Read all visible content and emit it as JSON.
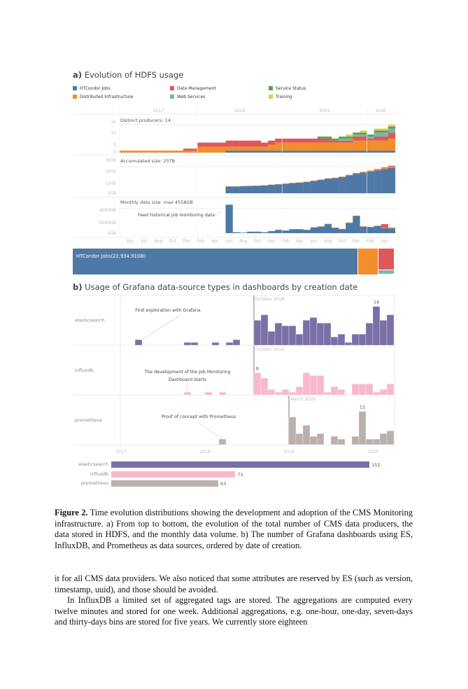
{
  "figure_a": {
    "title_prefix": "a)",
    "title": "Evolution of HDFS usage",
    "legend": [
      {
        "key": "htcondor",
        "label": "HTCondor Jobs",
        "color": "#4e79a7"
      },
      {
        "key": "distributed",
        "label": "Distributed Infrastructure",
        "color": "#f28e2b"
      },
      {
        "key": "datamgmt",
        "label": "Data Management",
        "color": "#e15759"
      },
      {
        "key": "websvc",
        "label": "Web Services",
        "color": "#76b7b2"
      },
      {
        "key": "svcstatus",
        "label": "Service Status",
        "color": "#59a14f"
      },
      {
        "key": "training",
        "label": "Training",
        "color": "#edc948"
      }
    ],
    "years": [
      "2017",
      "2018",
      "2019",
      "2020"
    ],
    "month_labels": [
      "Apr",
      "Jun",
      "Aug",
      "Oct",
      "Dec",
      "Feb",
      "Apr",
      "Jun",
      "Aug",
      "Oct",
      "Dec",
      "Feb",
      "Apr",
      "Jun",
      "Aug",
      "Oct",
      "Dec",
      "Feb",
      "Apr"
    ],
    "treemap": {
      "label": "HTCondor Jobs(22,934.91GB)"
    },
    "annotation": "Feed historical job monitoring data"
  },
  "chart_data": [
    {
      "type": "bar",
      "stacked": true,
      "title": "Distinct producers: 14",
      "x_start": "2017-02",
      "y_ticks": [
        "15",
        "10",
        "5",
        "0"
      ],
      "ylim": [
        0,
        15
      ],
      "series": [
        {
          "name": "HTCondor Jobs",
          "values": [
            0,
            0,
            0,
            0,
            0,
            0,
            0,
            0,
            0,
            0,
            0,
            0,
            0,
            0,
            0,
            1,
            1,
            1,
            1,
            1,
            1,
            1,
            1,
            1,
            1,
            1,
            1,
            1,
            1,
            1,
            1,
            1,
            1,
            1,
            1,
            1,
            1,
            1,
            1
          ]
        },
        {
          "name": "Distributed Infrastructure",
          "values": [
            1,
            1,
            1,
            1,
            1,
            1,
            1,
            1,
            1,
            1,
            1,
            3,
            3,
            3,
            3,
            2,
            2,
            2,
            2,
            2,
            2,
            3,
            4,
            4,
            4,
            4,
            4,
            4,
            4,
            4,
            4,
            4,
            4,
            5,
            5,
            5,
            5,
            5,
            6
          ]
        },
        {
          "name": "Data Management",
          "values": [
            0,
            0,
            0,
            0,
            0,
            0,
            0,
            0,
            0,
            1,
            1,
            2,
            2,
            2,
            2,
            3,
            3,
            3,
            3,
            3,
            2,
            2,
            2,
            2,
            2,
            2,
            2,
            2,
            2,
            2,
            1,
            1,
            1,
            2,
            2,
            1,
            2,
            2,
            3
          ]
        },
        {
          "name": "Web Services",
          "values": [
            0,
            0,
            0,
            0,
            0,
            0,
            0,
            0,
            0,
            0,
            0,
            0,
            0,
            0,
            0,
            0,
            0,
            0,
            0,
            0,
            0,
            0,
            0,
            0,
            0,
            0,
            0,
            0,
            0,
            0,
            0,
            1,
            1,
            1,
            1,
            1,
            2,
            2,
            2
          ]
        },
        {
          "name": "Service Status",
          "values": [
            0,
            0,
            0,
            0,
            0,
            0,
            0,
            0,
            0,
            0,
            0,
            0,
            0,
            0,
            0,
            0,
            0,
            0,
            0,
            0,
            0,
            0,
            0,
            0,
            0,
            0,
            0,
            0,
            1,
            1,
            1,
            1,
            1,
            1,
            1,
            1,
            1,
            1,
            1
          ]
        },
        {
          "name": "Training",
          "values": [
            0,
            0,
            0,
            0,
            0,
            0,
            0,
            0,
            0,
            0,
            0,
            0,
            0,
            0,
            0,
            0,
            0,
            0,
            0,
            0,
            0,
            0,
            0,
            0,
            0,
            0,
            0,
            0,
            0,
            0,
            0,
            0,
            1,
            0,
            1,
            0,
            1,
            1,
            1
          ]
        }
      ]
    },
    {
      "type": "bar",
      "stacked": true,
      "title": "Accumulated size: 25TB",
      "x_start": "2017-02",
      "y_ticks": [
        "30TB",
        "20TB",
        "10TB",
        "0TB"
      ],
      "ylim": [
        0,
        30
      ],
      "unit": "TB",
      "series": [
        {
          "name": "HTCondor Jobs",
          "values": [
            0,
            0,
            0,
            0,
            0,
            0,
            0,
            0,
            0,
            0,
            0,
            0,
            0,
            0,
            0,
            6,
            6,
            6.3,
            6.5,
            6.7,
            7,
            7.5,
            8,
            8.5,
            9,
            9.5,
            10,
            11,
            12,
            13,
            13.5,
            14.5,
            16,
            17.5,
            18.5,
            19.5,
            20.5,
            21.5,
            22.5
          ]
        },
        {
          "name": "Distributed Infrastructure",
          "values": [
            0,
            0,
            0,
            0,
            0,
            0,
            0,
            0,
            0,
            0,
            0,
            0,
            0,
            0,
            0,
            0.2,
            0.2,
            0.2,
            0.2,
            0.2,
            0.2,
            0.2,
            0.2,
            0.2,
            0.3,
            0.3,
            0.3,
            0.3,
            0.3,
            0.4,
            0.4,
            0.4,
            0.5,
            0.6,
            0.7,
            0.8,
            1,
            1.1,
            1.3
          ]
        },
        {
          "name": "Data Management",
          "values": [
            0,
            0,
            0,
            0,
            0,
            0,
            0,
            0,
            0,
            0,
            0,
            0,
            0,
            0,
            0,
            0,
            0,
            0,
            0,
            0,
            0,
            0,
            0,
            0,
            0,
            0,
            0,
            0,
            0,
            0,
            0,
            0,
            0,
            0,
            0,
            0,
            0.2,
            0.5,
            0.8
          ]
        }
      ]
    },
    {
      "type": "bar",
      "stacked": true,
      "title": "Monthly data size: max 4558GB",
      "x_start": "2017-02",
      "y_ticks": [
        "4000GB",
        "2000GB",
        "0GB"
      ],
      "ylim": [
        0,
        4600
      ],
      "unit": "GB",
      "series": [
        {
          "name": "HTCondor Jobs",
          "values": [
            0,
            0,
            0,
            0,
            0,
            0,
            0,
            0,
            0,
            0,
            0,
            0,
            0,
            0,
            0,
            4558,
            150,
            80,
            230,
            230,
            140,
            330,
            520,
            420,
            620,
            620,
            520,
            900,
            1050,
            1450,
            850,
            650,
            1650,
            2750,
            1050,
            950,
            1150,
            800,
            750
          ]
        },
        {
          "name": "Distributed Infrastructure",
          "values": [
            0,
            0,
            0,
            0,
            0,
            0,
            0,
            0,
            0,
            0,
            0,
            0,
            0,
            0,
            0,
            0,
            0,
            0,
            20,
            20,
            10,
            20,
            30,
            30,
            30,
            30,
            30,
            50,
            50,
            60,
            50,
            50,
            60,
            60,
            60,
            60,
            60,
            100,
            60
          ]
        },
        {
          "name": "Data Management",
          "values": [
            0,
            0,
            0,
            0,
            0,
            0,
            0,
            0,
            0,
            0,
            0,
            0,
            0,
            0,
            0,
            0,
            0,
            0,
            0,
            0,
            0,
            0,
            0,
            0,
            0,
            0,
            0,
            0,
            0,
            0,
            0,
            0,
            0,
            0,
            0,
            0,
            0,
            550,
            100
          ]
        }
      ]
    },
    {
      "type": "bar",
      "title": "Usage of Grafana data-source types in dashboards by creation date",
      "title_prefix": "b)",
      "x_ticks": [
        "2017",
        "2018",
        "2019",
        "2020"
      ],
      "rows": [
        {
          "name": "elasticsearch",
          "color": "#7b6fa8",
          "highlight_label": "October 2018",
          "highlight_start": "2018-10",
          "values": [
            9,
            11,
            5,
            8,
            7,
            7,
            4,
            9,
            10,
            8,
            8,
            3,
            4,
            1,
            4,
            4,
            8,
            14,
            9,
            11
          ],
          "early": [
            {
              "month": "2017-05",
              "value": 2
            },
            {
              "month": "2017-12",
              "value": 1
            },
            {
              "month": "2018-01",
              "value": 1
            },
            {
              "month": "2018-04",
              "value": 1
            },
            {
              "month": "2018-06",
              "value": 1
            },
            {
              "month": "2018-07",
              "value": 2
            }
          ],
          "max_label": "14",
          "annotation": [
            "First exploration with Grafana"
          ]
        },
        {
          "name": "influxdb",
          "color": "#f8b9cf",
          "highlight_label": "October 2018",
          "highlight_start": "2018-10",
          "values": [
            8,
            6,
            2,
            1,
            2,
            1,
            3,
            8,
            7,
            7,
            1,
            3,
            2,
            0,
            4,
            4,
            4,
            1,
            2,
            4
          ],
          "early": [
            {
              "month": "2017-12",
              "value": 1
            },
            {
              "month": "2018-03",
              "value": 1
            },
            {
              "month": "2018-05",
              "value": 1
            }
          ],
          "max_label": "8",
          "annotation": [
            "The development of the Job Monitoring",
            "Dashboard starts"
          ]
        },
        {
          "name": "prometheus",
          "color": "#bab0ac",
          "highlight_label": "March 2019",
          "highlight_start": "2019-03",
          "values": [
            10,
            4,
            7,
            3,
            4,
            0,
            3,
            2,
            0,
            3,
            12,
            2,
            2,
            4,
            5
          ],
          "early": [
            {
              "month": "2018-05",
              "value": 2
            }
          ],
          "max_label": "12",
          "annotation": [
            "Proof of concept with Prometheus"
          ]
        }
      ]
    },
    {
      "type": "bar",
      "orientation": "horizontal",
      "categories": [
        "elasticsearch",
        "influxdb",
        "prometheus"
      ],
      "values": [
        152,
        73,
        63
      ],
      "labels": [
        "152",
        "73",
        "63"
      ],
      "colors": [
        "#7b6fa8",
        "#f8b9cf",
        "#bab0ac"
      ]
    }
  ],
  "caption": {
    "label": "Figure 2.",
    "text": "Time evolution distributions showing the development and adoption of the CMS Monitoring infrastructure. a) From top to bottom, the evolution of the total number of CMS data producers, the data stored in HDFS, and the monthly data volume. b) The number of Grafana dashboards using ES, InfluxDB, and Prometheus as data sources, ordered by date of creation."
  },
  "body": {
    "p1": "it for all CMS data providers. We also noticed that some attributes are reserved by ES (such as version, timestamp, uuid), and those should be avoided.",
    "p2": "In InfluxDB a limited set of aggregated tags are stored. The aggregations are computed every twelve minutes and stored for one week. Additional aggregations, e.g. one-hour, one-day, seven-days and thirty-days bins are stored for five years. We currently store eighteen"
  }
}
